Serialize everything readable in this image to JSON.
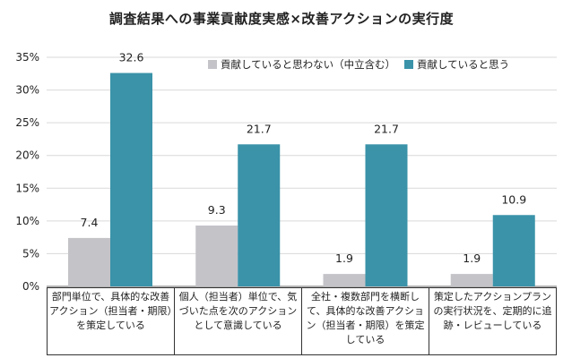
{
  "chart_data": {
    "type": "bar",
    "title": "調査結果への事業貢献度実感×改善アクションの実行度",
    "categories": [
      "部門単位で、具体的な改善アクション（担当者・期限）を策定している",
      "個人（担当者）単位で、気づいた点を次のアクションとして意識している",
      "全社・複数部門を横断して、具体的な改善アクション（担当者・期限）を策定している",
      "策定したアクションプランの実行状況を、定期的に追跡・レビューしている"
    ],
    "series": [
      {
        "name": "貢献していると思わない（中立含む）",
        "values": [
          7.4,
          9.3,
          1.9,
          1.9
        ],
        "color": "#c4c3c8"
      },
      {
        "name": "貢献していると思う",
        "values": [
          32.6,
          21.7,
          21.7,
          10.9
        ],
        "color": "#3a93a9"
      }
    ],
    "value_labels": [
      [
        "7.4",
        "9.3",
        "1.9",
        "1.9"
      ],
      [
        "32.6",
        "21.7",
        "21.7",
        "10.9"
      ]
    ],
    "ylim": [
      0,
      35
    ],
    "yticks": [
      "0%",
      "5%",
      "10%",
      "15%",
      "20%",
      "25%",
      "30%",
      "35%"
    ],
    "xlabel": "",
    "ylabel": "",
    "grid": true,
    "legend_position": "top-right"
  }
}
